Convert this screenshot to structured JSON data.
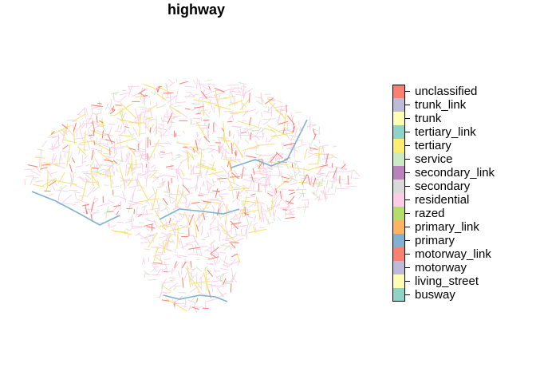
{
  "title": "highway",
  "legend": {
    "items": [
      {
        "label": "unclassified",
        "color": "#FB8072"
      },
      {
        "label": "trunk_link",
        "color": "#BEBADA"
      },
      {
        "label": "trunk",
        "color": "#FFFFB3"
      },
      {
        "label": "tertiary_link",
        "color": "#8DD3C7"
      },
      {
        "label": "tertiary",
        "color": "#FFED6F"
      },
      {
        "label": "service",
        "color": "#CCEBC5"
      },
      {
        "label": "secondary_link",
        "color": "#BC80BD"
      },
      {
        "label": "secondary",
        "color": "#D9D9D9"
      },
      {
        "label": "residential",
        "color": "#FCCDE5"
      },
      {
        "label": "razed",
        "color": "#B3DE69"
      },
      {
        "label": "primary_link",
        "color": "#FDB462"
      },
      {
        "label": "primary",
        "color": "#80B1D3"
      },
      {
        "label": "motorway_link",
        "color": "#FB8072"
      },
      {
        "label": "motorway",
        "color": "#BEBADA"
      },
      {
        "label": "living_street",
        "color": "#FFFFB3"
      },
      {
        "label": "busway",
        "color": "#8DD3C7"
      }
    ]
  }
}
